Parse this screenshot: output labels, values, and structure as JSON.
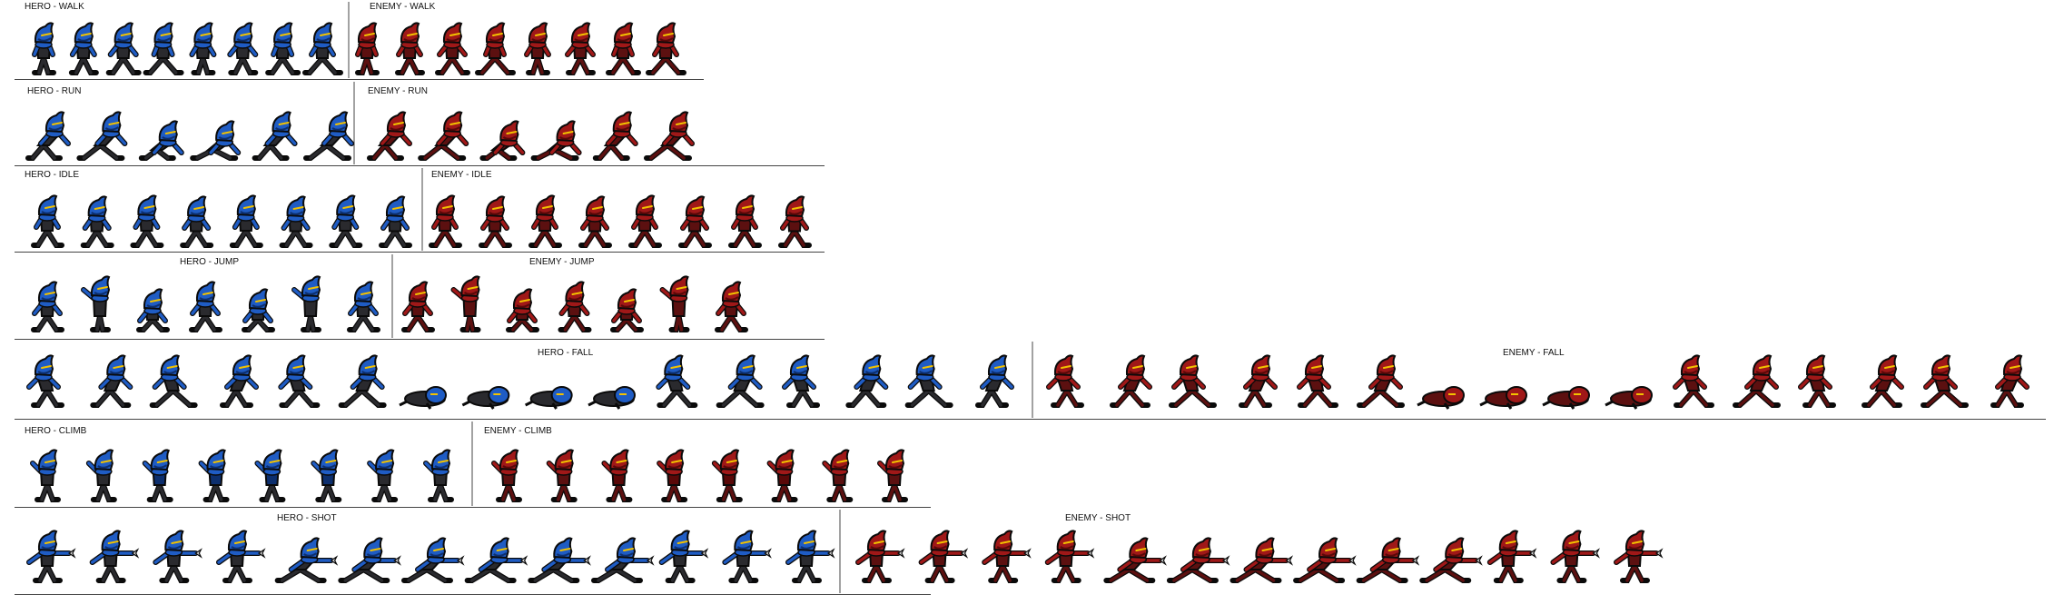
{
  "colors": {
    "background": "#ffffff",
    "divider": "#444444",
    "hero_body": "#1f5cc4",
    "hero_dark": "#0d2f6e",
    "hero_suit": "#2a2a2e",
    "enemy_body": "#a01818",
    "enemy_dark": "#5a0808",
    "enemy_suit": "#5c1010",
    "eye": "#f2c200",
    "outline": "#0a0a0a"
  },
  "labels": {
    "hero_walk": "HERO - WALK",
    "enemy_walk": "ENEMY - WALK",
    "hero_run": "HERO - RUN",
    "enemy_run": "ENEMY - RUN",
    "hero_idle": "HERO - IDLE",
    "enemy_idle": "ENEMY - IDLE",
    "hero_jump": "HERO - JUMP",
    "enemy_jump": "ENEMY - JUMP",
    "hero_fall": "HERO - FALL",
    "enemy_fall": "ENEMY - FALL",
    "hero_climb": "HERO - CLIMB",
    "enemy_climb": "ENEMY - CLIMB",
    "hero_shot": "HERO - SHOT",
    "enemy_shot": "ENEMY - SHOT"
  },
  "icons": {
    "hero_sprite": "hero-ninja-sprite-icon",
    "enemy_sprite": "enemy-ninja-sprite-icon"
  },
  "animations": [
    {
      "key": "walk",
      "hero_frames": 8,
      "enemy_frames": 8
    },
    {
      "key": "run",
      "hero_frames": 6,
      "enemy_frames": 6
    },
    {
      "key": "idle",
      "hero_frames": 8,
      "enemy_frames": 8
    },
    {
      "key": "jump",
      "hero_frames": 7,
      "enemy_frames": 7
    },
    {
      "key": "fall",
      "hero_frames": 16,
      "enemy_frames": 16
    },
    {
      "key": "climb",
      "hero_frames": 8,
      "enemy_frames": 8
    },
    {
      "key": "shot",
      "hero_frames": 13,
      "enemy_frames": 13
    }
  ]
}
